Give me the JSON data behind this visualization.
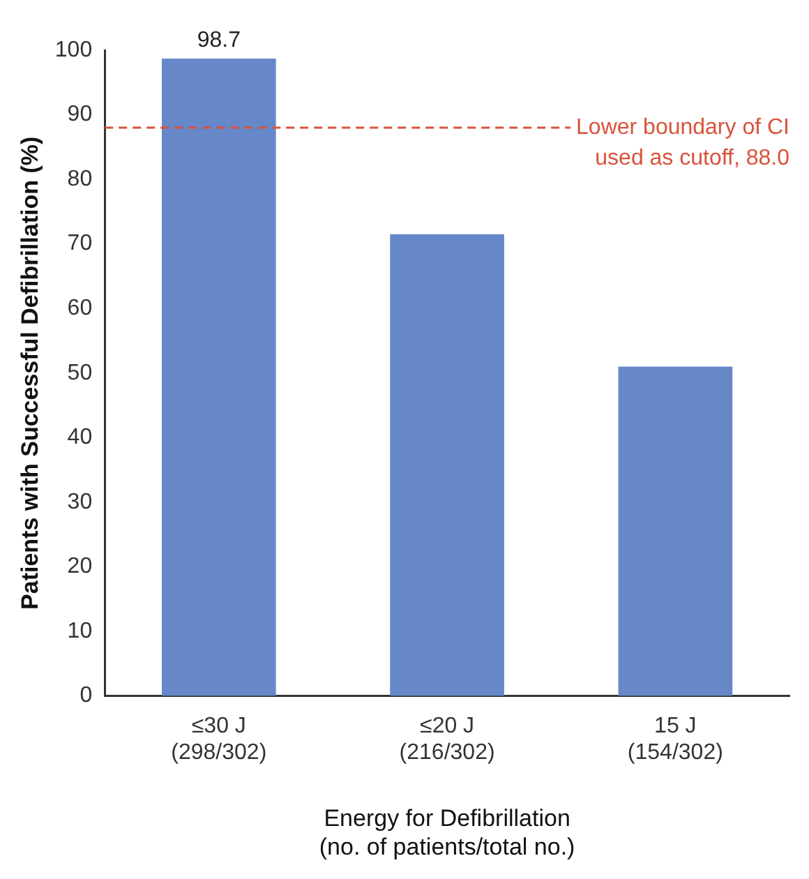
{
  "chart_data": {
    "type": "bar",
    "xlabel": "Energy for Defibrillation\n(no. of patients/total no.)",
    "ylabel": "Patients with Successful Defibrillation (%)",
    "categories": [
      "≤30 J\n(298/302)",
      "≤20 J\n(216/302)",
      "15 J\n(154/302)"
    ],
    "values": [
      98.7,
      71.5,
      51.0
    ],
    "color": "#6688c8",
    "value_labels": [
      "98.7",
      null,
      null
    ],
    "ylim": [
      0,
      100
    ],
    "yticks": [
      0,
      10,
      20,
      30,
      40,
      50,
      60,
      70,
      80,
      90,
      100
    ],
    "grid": false,
    "legend": false,
    "ref_lines": [
      {
        "axis": "y",
        "value": 88.0,
        "label": "Lower boundary of CI used as cutoff, 88.0",
        "color": "#d9533b",
        "line_style": "dashed"
      }
    ]
  }
}
